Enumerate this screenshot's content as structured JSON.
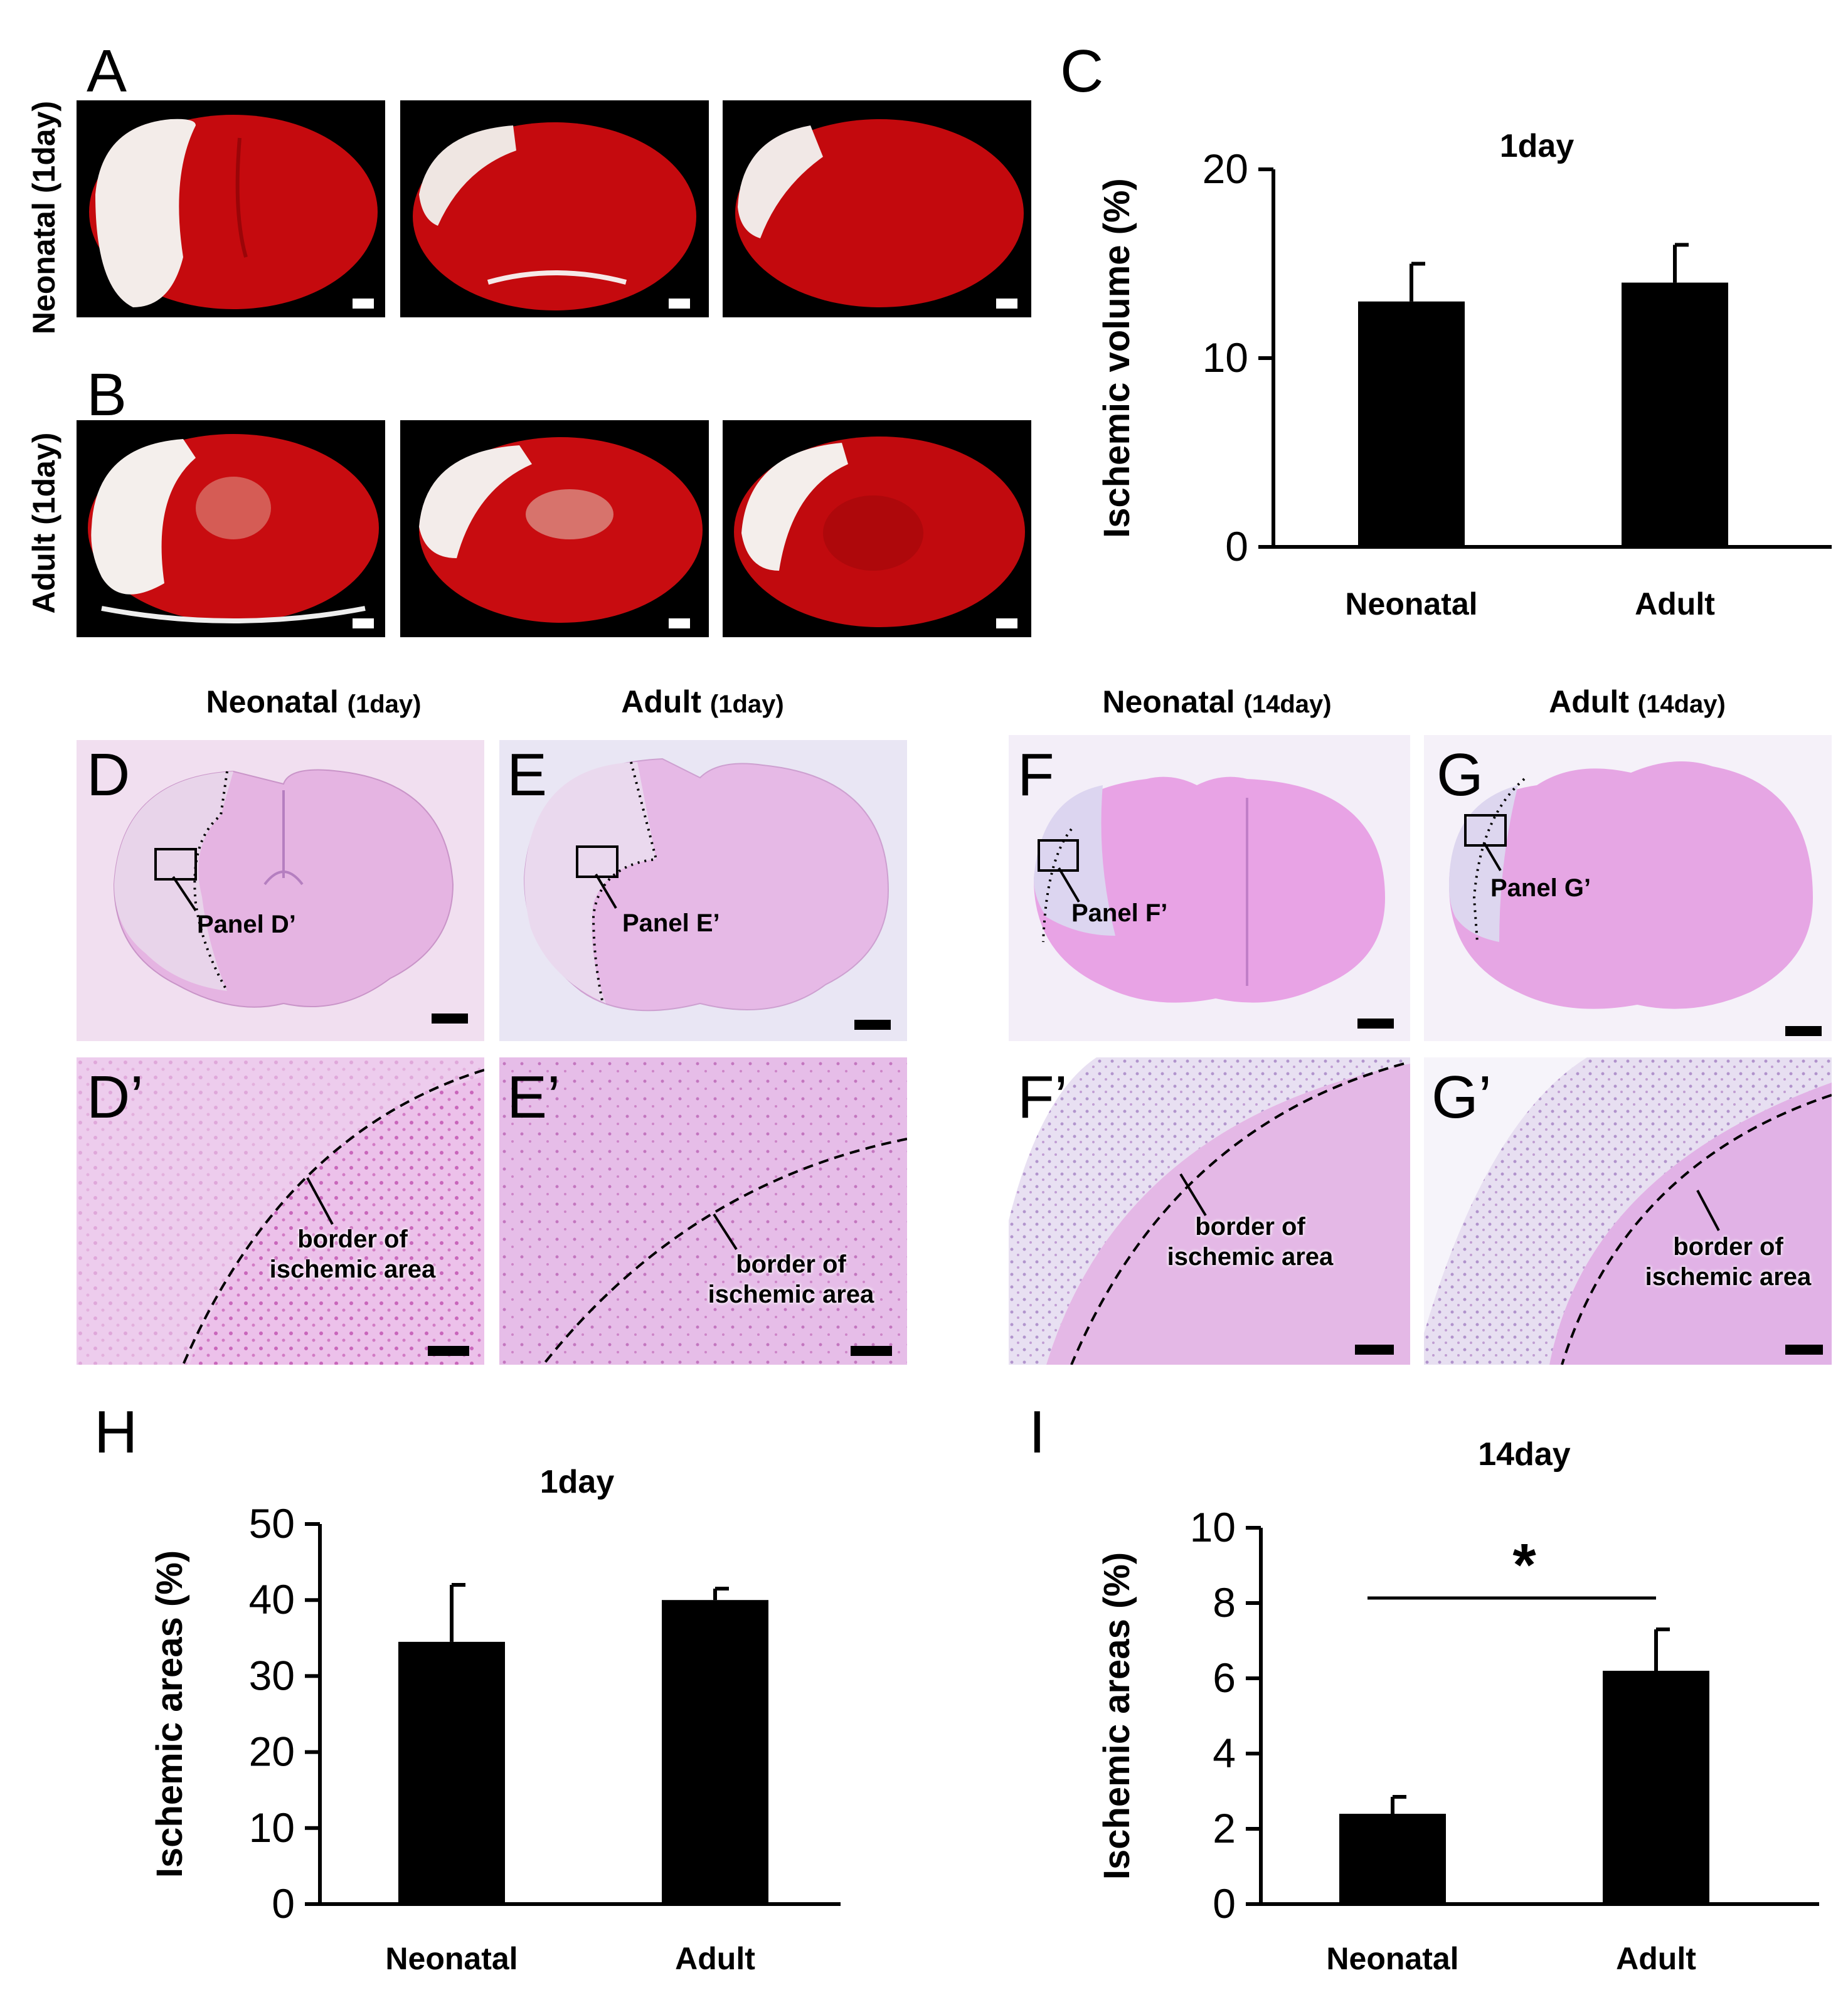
{
  "panel_letters": {
    "A": "A",
    "B": "B",
    "C": "C",
    "D": "D",
    "E": "E",
    "F": "F",
    "G": "G",
    "Dp": "D’",
    "Ep": "E’",
    "Fp": "F’",
    "Gp": "G’",
    "H": "H",
    "I": "I"
  },
  "row_labels": {
    "neonatal": "Neonatal (1day)",
    "adult": "Adult (1day)"
  },
  "histology_headers": [
    {
      "group": "Neonatal",
      "time": "(1day)"
    },
    {
      "group": "Adult",
      "time": "(1day)"
    },
    {
      "group": "Neonatal",
      "time": "(14day)"
    },
    {
      "group": "Adult",
      "time": "(14day)"
    }
  ],
  "inset_labels": {
    "D": "Panel D’",
    "E": "Panel E’",
    "F": "Panel F’",
    "G": "Panel G’"
  },
  "border_label": {
    "line1": "border of",
    "line2": "ischemic area"
  },
  "colors": {
    "tissue_red": "#c0080c",
    "infarct_white": "#f4ecea",
    "stain_pink": "#e99ae0",
    "stain_pale": "#dcd0ee",
    "bar": "#000000"
  },
  "chart_data": [
    {
      "id": "C",
      "type": "bar",
      "title": "1day",
      "categories": [
        "Neonatal",
        "Adult"
      ],
      "values": [
        13,
        14
      ],
      "errors": [
        2.0,
        2.0
      ],
      "ylabel": "Ischemic volume (%)",
      "ylim": [
        0,
        20
      ],
      "yticks": [
        0,
        10,
        20
      ]
    },
    {
      "id": "H",
      "type": "bar",
      "title": "1day",
      "categories": [
        "Neonatal",
        "Adult"
      ],
      "values": [
        34.5,
        40
      ],
      "errors": [
        7.5,
        1.5
      ],
      "ylabel": "Ischemic areas (%)",
      "ylim": [
        0,
        50
      ],
      "yticks": [
        0,
        10,
        20,
        30,
        40,
        50
      ]
    },
    {
      "id": "I",
      "type": "bar",
      "title": "14day",
      "categories": [
        "Neonatal",
        "Adult"
      ],
      "values": [
        2.4,
        6.2
      ],
      "errors": [
        0.45,
        1.1
      ],
      "ylabel": "Ischemic areas (%)",
      "ylim": [
        0,
        10
      ],
      "yticks": [
        0,
        2,
        4,
        6,
        8,
        10
      ],
      "significance": "*"
    }
  ]
}
